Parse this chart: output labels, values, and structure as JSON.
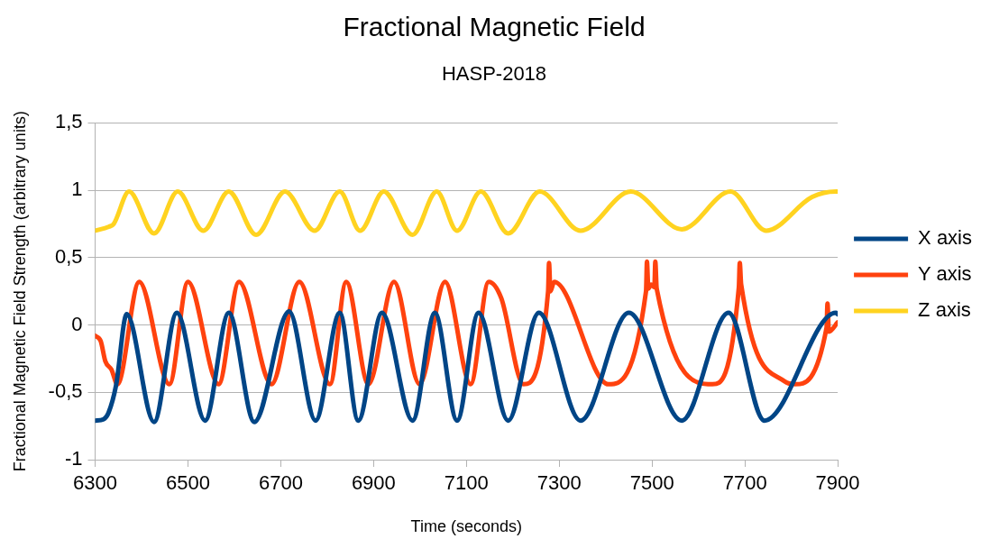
{
  "chart_data": {
    "type": "line",
    "title": "Fractional Magnetic Field",
    "subtitle": "HASP-2018",
    "xlabel": "Time (seconds)",
    "ylabel": "Fractional Magnetic Field Strength (arbitrary units)",
    "xlim": [
      6300,
      7900
    ],
    "xticks": [
      6300,
      6500,
      6700,
      6900,
      7100,
      7300,
      7500,
      7700,
      7900
    ],
    "ylim": [
      -1,
      1.5
    ],
    "yticks": [
      -1,
      {
        "value": -0.5,
        "label": "-0,5"
      },
      0,
      {
        "value": 0.5,
        "label": "0,5"
      },
      1,
      {
        "value": 1.5,
        "label": "1,5"
      }
    ],
    "grid": "y",
    "legend": "right",
    "marker": "none",
    "line_style": "solid",
    "series": [
      {
        "name": "X axis",
        "color": "#004586",
        "x": [
          6300,
          6318,
          6329,
          6345,
          6368,
          6427,
          6476,
          6537,
          6588,
          6643,
          6718,
          6775,
          6827,
          6867,
          6918,
          6984,
          7032,
          7080,
          7126,
          7190,
          7256,
          7346,
          7450,
          7564,
          7665,
          7742,
          7896,
          7900
        ],
        "values": [
          -0.71,
          -0.7,
          -0.65,
          -0.45,
          0.08,
          -0.72,
          0.09,
          -0.71,
          0.09,
          -0.72,
          0.1,
          -0.71,
          0.09,
          -0.71,
          0.09,
          -0.71,
          0.09,
          -0.71,
          0.09,
          -0.71,
          0.09,
          -0.71,
          0.09,
          -0.71,
          0.09,
          -0.71,
          0.09,
          0.08
        ]
      },
      {
        "name": "Y axis",
        "color": "#ff420e",
        "x": [
          6300,
          6312,
          6322,
          6335,
          6348,
          6395,
          6460,
          6500,
          6566,
          6610,
          6680,
          6740,
          6806,
          6841,
          6889,
          6944,
          6999,
          7054,
          7109,
          7148,
          7175,
          7223,
          7276,
          7278,
          7281,
          7289,
          7406,
          7487,
          7489,
          7492,
          7498,
          7505,
          7507,
          7510,
          7630,
          7687,
          7689,
          7692,
          7786,
          7808,
          7876,
          7878,
          7881,
          7900
        ],
        "values": [
          -0.08,
          -0.12,
          -0.27,
          -0.33,
          -0.44,
          0.32,
          -0.44,
          0.32,
          -0.44,
          0.32,
          -0.44,
          0.32,
          -0.44,
          0.32,
          -0.44,
          0.32,
          -0.44,
          0.32,
          -0.44,
          0.32,
          0.2,
          -0.44,
          0.25,
          0.46,
          0.25,
          0.32,
          -0.44,
          0.25,
          0.47,
          0.27,
          0.3,
          0.28,
          0.47,
          0.27,
          -0.44,
          0.28,
          0.46,
          0.3,
          -0.42,
          -0.44,
          -0.02,
          0.16,
          -0.05,
          0.02
        ]
      },
      {
        "name": "Z axis",
        "color": "#ffd320",
        "x": [
          6300,
          6330,
          6340,
          6373,
          6427,
          6478,
          6533,
          6588,
          6647,
          6709,
          6773,
          6827,
          6871,
          6922,
          6984,
          7036,
          7080,
          7131,
          7190,
          7258,
          7346,
          7454,
          7564,
          7669,
          7746,
          7845,
          7896,
          7900
        ],
        "values": [
          0.7,
          0.73,
          0.75,
          0.99,
          0.68,
          0.99,
          0.7,
          0.99,
          0.67,
          0.99,
          0.7,
          0.99,
          0.7,
          0.99,
          0.67,
          0.99,
          0.7,
          0.99,
          0.68,
          0.99,
          0.7,
          0.99,
          0.71,
          0.99,
          0.7,
          0.95,
          0.99,
          0.99
        ]
      }
    ]
  }
}
